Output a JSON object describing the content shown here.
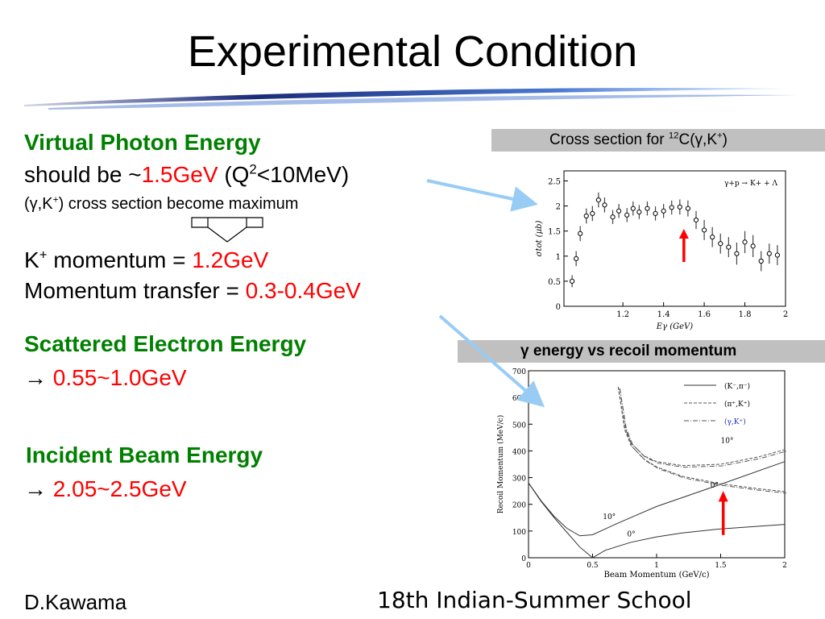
{
  "slide": {
    "title": "Experimental Condition",
    "virtual_photon": {
      "heading": "Virtual Photon Energy",
      "line1_prefix": "should be ~",
      "energy_value": "1.5GeV",
      "q2_open": "(Q",
      "q2_exp": "2",
      "q2_rest": "<10MeV)",
      "cross_prefix": "(γ,K",
      "cross_sup": "+",
      "cross_rest": ") cross section become maximum"
    },
    "kinematics": {
      "k_momentum_base": "K",
      "k_momentum_sup": "+",
      "k_momentum_label": " momentum = ",
      "k_momentum_value": "1.2GeV",
      "momentum_transfer_label": "Momentum transfer = ",
      "momentum_transfer_value": "0.3-0.4GeV"
    },
    "scattered_electron": {
      "heading": "Scattered Electron Energy",
      "arrow": "→ ",
      "value": "0.55~1.0GeV"
    },
    "incident_beam": {
      "heading": "Incident Beam Energy",
      "arrow": "→ ",
      "value": "2.05~2.5GeV"
    },
    "footer": {
      "author": "D.Kawama",
      "event": "18th Indian-Summer School"
    }
  },
  "colors": {
    "heading": "#008000",
    "highlight": "#ff0000",
    "panel_label_bg": "#c0c0c0",
    "pointer_arrow": "#99ccf5"
  },
  "chart_data": [
    {
      "type": "scatter",
      "panel_label_prefix": "Cross section for ",
      "panel_label_sup1": "12",
      "panel_label_mid": "C(γ,K",
      "panel_label_sup2": "+",
      "panel_label_end": ")",
      "reaction": "γ+p → K+ + Λ",
      "xlabel": "Eγ (GeV)",
      "ylabel": "σtot (μb)",
      "xlim": [
        0.91,
        2.0
      ],
      "ylim": [
        0,
        2.7
      ],
      "xticks": [
        "1.2",
        "1.4",
        "1.6",
        "1.8",
        "2"
      ],
      "yticks": [
        "0",
        "0.5",
        "1",
        "1.5",
        "2",
        "2.5"
      ],
      "x": [
        0.95,
        0.97,
        0.99,
        1.02,
        1.05,
        1.08,
        1.11,
        1.15,
        1.18,
        1.22,
        1.25,
        1.28,
        1.32,
        1.36,
        1.4,
        1.44,
        1.48,
        1.52,
        1.56,
        1.6,
        1.64,
        1.68,
        1.72,
        1.76,
        1.8,
        1.84,
        1.88,
        1.92,
        1.96
      ],
      "y": [
        0.5,
        0.95,
        1.45,
        1.8,
        1.85,
        2.12,
        2.02,
        1.78,
        1.9,
        1.82,
        1.95,
        1.88,
        1.95,
        1.85,
        1.9,
        1.97,
        1.98,
        1.95,
        1.72,
        1.52,
        1.38,
        1.25,
        1.18,
        1.05,
        1.28,
        1.2,
        0.9,
        1.05,
        1.02
      ],
      "err": [
        0.12,
        0.15,
        0.15,
        0.15,
        0.15,
        0.15,
        0.15,
        0.14,
        0.14,
        0.14,
        0.14,
        0.14,
        0.14,
        0.14,
        0.14,
        0.14,
        0.15,
        0.16,
        0.18,
        0.2,
        0.2,
        0.2,
        0.2,
        0.22,
        0.22,
        0.22,
        0.2,
        0.2,
        0.2
      ],
      "marker_x": 1.5
    },
    {
      "type": "line",
      "panel_label": "γ energy vs recoil momentum",
      "xlabel": "Beam Momentum (GeV/c)",
      "ylabel": "Recoil Momentum (MeV/c)",
      "xlim": [
        0,
        2
      ],
      "ylim": [
        0,
        700
      ],
      "xticks": [
        "0",
        "0.5",
        "1",
        "1.5",
        "2"
      ],
      "yticks": [
        "0",
        "100",
        "200",
        "300",
        "400",
        "500",
        "600",
        "700"
      ],
      "legend": [
        "(K⁻,π⁻)",
        "(π⁺,K⁺)",
        "(γ,K⁺)"
      ],
      "legend_position": "top-right",
      "annotations": [
        "10°",
        "0°",
        "10°",
        "0°"
      ],
      "series": [
        {
          "name": "(K⁻,π⁻)",
          "curve": "0°",
          "x": [
            0.0,
            0.1,
            0.2,
            0.3,
            0.4,
            0.5,
            0.6,
            0.8,
            1.0,
            1.2,
            1.5,
            1.8,
            2.0
          ],
          "y": [
            280,
            210,
            150,
            95,
            40,
            0,
            28,
            58,
            78,
            93,
            108,
            118,
            125
          ]
        },
        {
          "name": "(K⁻,π⁻)",
          "curve": "10°",
          "x": [
            0.0,
            0.1,
            0.2,
            0.3,
            0.4,
            0.5,
            0.7,
            1.0,
            1.5,
            2.0
          ],
          "y": [
            280,
            212,
            155,
            110,
            82,
            86,
            130,
            192,
            275,
            360
          ]
        },
        {
          "name": "(π⁺,K⁺)",
          "curve": "0°",
          "x": [
            0.7,
            0.75,
            0.8,
            0.9,
            1.0,
            1.2,
            1.5,
            1.8,
            2.0
          ],
          "y": [
            640,
            480,
            420,
            370,
            340,
            305,
            277,
            258,
            248
          ]
        },
        {
          "name": "(π⁺,K⁺)",
          "curve": "10°",
          "x": [
            0.7,
            0.75,
            0.8,
            0.9,
            1.0,
            1.2,
            1.5,
            1.8,
            2.0
          ],
          "y": [
            640,
            490,
            430,
            382,
            360,
            345,
            350,
            378,
            405
          ]
        }
      ],
      "marker_x": 1.52
    }
  ]
}
